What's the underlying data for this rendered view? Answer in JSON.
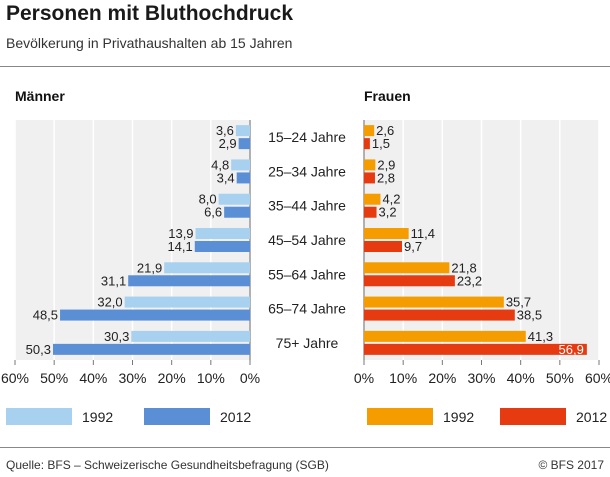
{
  "header": {
    "title": "Personen mit Bluthochdruck",
    "subtitle": "Bevölkerung in Privathaushalten ab 15 Jahren"
  },
  "footer": {
    "source": "Quelle: BFS – Schweizerische Gesundheitsbefragung (SGB)",
    "copyright": "© BFS 2017"
  },
  "colors": {
    "men_1992": "#a8d0ef",
    "men_2012": "#5a8fd6",
    "women_1992": "#f59d00",
    "women_2012": "#e63a10",
    "panel_bg": "#f0f0f0",
    "grid": "#ffffff"
  },
  "legend": {
    "men": [
      {
        "label": "1992",
        "color": "#a8d0ef"
      },
      {
        "label": "2012",
        "color": "#5a8fd6"
      }
    ],
    "women": [
      {
        "label": "1992",
        "color": "#f59d00"
      },
      {
        "label": "2012",
        "color": "#e63a10"
      }
    ]
  },
  "chart_data": {
    "type": "bar",
    "orientation": "horizontal-butterfly",
    "categories": [
      "15–24 Jahre",
      "25–34 Jahre",
      "35–44 Jahre",
      "45–54 Jahre",
      "55–64 Jahre",
      "65–74 Jahre",
      "75+ Jahre"
    ],
    "xlim": [
      0,
      60
    ],
    "ticks": [
      "0%",
      "10%",
      "20%",
      "30%",
      "40%",
      "50%",
      "60%"
    ],
    "grid": true,
    "panels": [
      {
        "title": "Männer",
        "direction": "left",
        "series": [
          {
            "name": "1992",
            "values": [
              3.6,
              4.8,
              8.0,
              13.9,
              21.9,
              32.0,
              30.3
            ],
            "labels": [
              "3,6",
              "4,8",
              "8,0",
              "13,9",
              "21,9",
              "32,0",
              "30,3"
            ]
          },
          {
            "name": "2012",
            "values": [
              2.9,
              3.4,
              6.6,
              14.1,
              31.1,
              48.5,
              50.3
            ],
            "labels": [
              "2,9",
              "3,4",
              "6,6",
              "14,1",
              "31,1",
              "48,5",
              "50,3"
            ]
          }
        ]
      },
      {
        "title": "Frauen",
        "direction": "right",
        "series": [
          {
            "name": "1992",
            "values": [
              2.6,
              2.9,
              4.2,
              11.4,
              21.8,
              35.7,
              41.3
            ],
            "labels": [
              "2,6",
              "2,9",
              "4,2",
              "11,4",
              "21,8",
              "35,7",
              "41,3"
            ]
          },
          {
            "name": "2012",
            "values": [
              1.5,
              2.8,
              3.2,
              9.7,
              23.2,
              38.5,
              56.9
            ],
            "labels": [
              "1,5",
              "2,8",
              "3,2",
              "9,7",
              "23,2",
              "38,5",
              "56,9"
            ]
          }
        ]
      }
    ]
  }
}
